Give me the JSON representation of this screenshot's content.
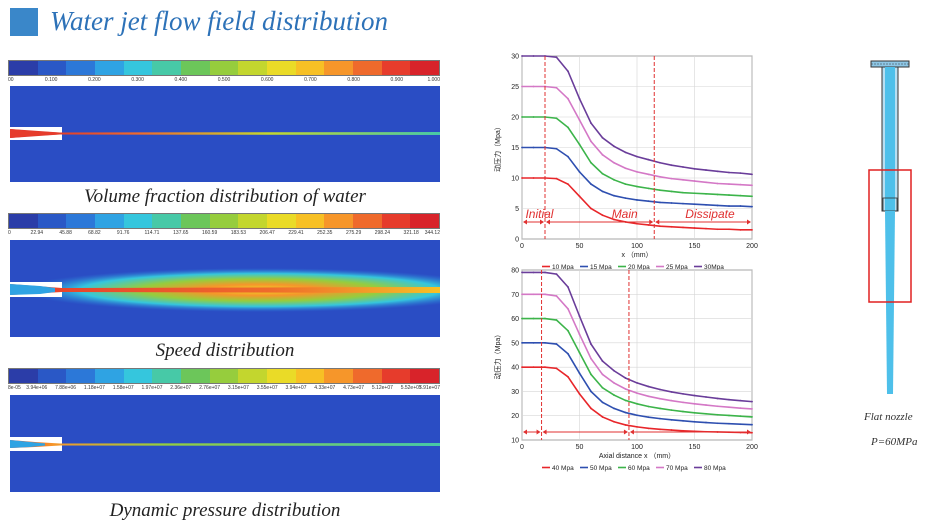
{
  "header": {
    "title": "Water jet flow field distribution",
    "accent_color": "#3a87c9"
  },
  "panels": [
    {
      "caption": "Volume fraction distribution of water",
      "ticks": [
        "00",
        "0.100",
        "0.200",
        "0.300",
        "0.400",
        "0.500",
        "0.600",
        "0.700",
        "0.800",
        "0.900",
        "1.000"
      ]
    },
    {
      "caption": "Speed distribution",
      "ticks": [
        "0",
        "22.94",
        "45.88",
        "68.82",
        "91.76",
        "114.71",
        "137.65",
        "160.59",
        "183.53",
        "206.47",
        "229.41",
        "252.35",
        "275.29",
        "298.24",
        "321.18",
        "344.12"
      ]
    },
    {
      "caption": "Dynamic pressure distribution",
      "ticks": [
        "8e-05",
        "3.94e+06",
        "7.88e+06",
        "1.18e+07",
        "1.58e+07",
        "1.97e+07",
        "2.36e+07",
        "2.76e+07",
        "3.15e+07",
        "3.55e+07",
        "3.94e+07",
        "4.33e+07",
        "4.73e+07",
        "5.12e+07",
        "5.52e+07",
        "5.91e+07"
      ]
    }
  ],
  "colormap": [
    "#2b3da8",
    "#2a58c6",
    "#2c78d8",
    "#2fa3e3",
    "#35c6dd",
    "#47c9a7",
    "#6cc65a",
    "#96cd3d",
    "#c3d62e",
    "#eadb27",
    "#f7c025",
    "#f6962a",
    "#ef6a2c",
    "#e63c2c",
    "#d8232a"
  ],
  "chart_data": [
    {
      "type": "line",
      "xlabel": "x （mm）",
      "ylabel": "动压力（Mpa）",
      "xlim": [
        0,
        200
      ],
      "ylim": [
        0,
        30
      ],
      "xticks": [
        0,
        50,
        100,
        150,
        200
      ],
      "yticks": [
        0,
        5,
        10,
        15,
        20,
        25,
        30
      ],
      "annotations": [
        "Initial",
        "Main",
        "Dissipate"
      ],
      "vlines": [
        20,
        115
      ],
      "series": [
        {
          "name": "10 Mpa",
          "color": "#e8262a",
          "x": [
            0,
            10,
            20,
            30,
            40,
            50,
            60,
            70,
            80,
            90,
            100,
            110,
            120,
            130,
            140,
            150,
            160,
            170,
            180,
            190,
            200
          ],
          "values": [
            10,
            10,
            10,
            9.9,
            9.0,
            7.0,
            5.0,
            3.9,
            3.2,
            2.8,
            2.5,
            2.3,
            2.1,
            2.0,
            1.9,
            1.8,
            1.7,
            1.6,
            1.6,
            1.5,
            1.5
          ]
        },
        {
          "name": "15 Mpa",
          "color": "#2e4fb0",
          "x": [
            0,
            10,
            20,
            30,
            40,
            50,
            60,
            70,
            80,
            90,
            100,
            110,
            120,
            130,
            140,
            150,
            160,
            170,
            180,
            190,
            200
          ],
          "values": [
            15,
            15,
            15,
            14.8,
            13.5,
            11.0,
            9.0,
            7.8,
            7.1,
            6.7,
            6.4,
            6.2,
            6.0,
            5.9,
            5.8,
            5.7,
            5.6,
            5.5,
            5.4,
            5.4,
            5.3
          ]
        },
        {
          "name": "20 Mpa",
          "color": "#3cb44a",
          "x": [
            0,
            10,
            20,
            30,
            40,
            50,
            60,
            70,
            80,
            90,
            100,
            110,
            120,
            130,
            140,
            150,
            160,
            170,
            180,
            190,
            200
          ],
          "values": [
            20,
            20,
            20,
            19.8,
            18.3,
            15.5,
            12.5,
            10.7,
            9.7,
            9.0,
            8.6,
            8.3,
            8.0,
            7.8,
            7.6,
            7.5,
            7.4,
            7.3,
            7.2,
            7.1,
            7.0
          ]
        },
        {
          "name": "25 Mpa",
          "color": "#d478c6",
          "x": [
            0,
            10,
            20,
            30,
            40,
            50,
            60,
            70,
            80,
            90,
            100,
            110,
            120,
            130,
            140,
            150,
            160,
            170,
            180,
            190,
            200
          ],
          "values": [
            25,
            25,
            25,
            24.8,
            23.0,
            19.5,
            16.0,
            13.8,
            12.5,
            11.6,
            11.0,
            10.6,
            10.2,
            9.9,
            9.7,
            9.5,
            9.3,
            9.1,
            9.0,
            8.9,
            8.8
          ]
        },
        {
          "name": "30Mpa",
          "color": "#6a3d9a",
          "x": [
            0,
            10,
            20,
            30,
            40,
            50,
            60,
            70,
            80,
            90,
            100,
            110,
            120,
            130,
            140,
            150,
            160,
            170,
            180,
            190,
            200
          ],
          "values": [
            30,
            30,
            30,
            29.8,
            27.5,
            23.0,
            19.0,
            16.6,
            15.2,
            14.2,
            13.5,
            13.0,
            12.5,
            12.1,
            11.8,
            11.5,
            11.3,
            11.1,
            10.9,
            10.8,
            10.6
          ]
        }
      ]
    },
    {
      "type": "line",
      "xlabel": "Axial distance x （mm）",
      "ylabel": "动压力（Mpa）",
      "xlim": [
        0,
        200
      ],
      "ylim": [
        10,
        80
      ],
      "xticks": [
        0,
        50,
        100,
        150,
        200
      ],
      "yticks": [
        10,
        20,
        30,
        40,
        50,
        60,
        70,
        80
      ],
      "vlines": [
        17,
        93
      ],
      "series": [
        {
          "name": "40 Mpa",
          "color": "#e8262a",
          "x": [
            0,
            10,
            20,
            30,
            40,
            50,
            60,
            70,
            80,
            90,
            100,
            110,
            120,
            130,
            140,
            150,
            160,
            170,
            180,
            190,
            200
          ],
          "values": [
            40,
            40,
            40,
            39.5,
            36,
            29,
            23,
            19.5,
            17.5,
            16.2,
            15.4,
            14.8,
            14.4,
            14.1,
            13.8,
            13.6,
            13.4,
            13.3,
            13.2,
            13.1,
            13.0
          ]
        },
        {
          "name": "50 Mpa",
          "color": "#2e4fb0",
          "x": [
            0,
            10,
            20,
            30,
            40,
            50,
            60,
            70,
            80,
            90,
            100,
            110,
            120,
            130,
            140,
            150,
            160,
            170,
            180,
            190,
            200
          ],
          "values": [
            50,
            50,
            50,
            49.5,
            45.5,
            37.5,
            30,
            25.5,
            23,
            21.3,
            20.2,
            19.4,
            18.8,
            18.3,
            17.9,
            17.5,
            17.2,
            16.9,
            16.7,
            16.5,
            16.3
          ]
        },
        {
          "name": "60 Mpa",
          "color": "#3cb44a",
          "x": [
            0,
            10,
            20,
            30,
            40,
            50,
            60,
            70,
            80,
            90,
            100,
            110,
            120,
            130,
            140,
            150,
            160,
            170,
            180,
            190,
            200
          ],
          "values": [
            60,
            60,
            60,
            59.4,
            55,
            46,
            37,
            31.5,
            28.5,
            26.3,
            24.9,
            23.8,
            23.0,
            22.3,
            21.7,
            21.2,
            20.8,
            20.4,
            20.1,
            19.8,
            19.5
          ]
        },
        {
          "name": "70 Mpa",
          "color": "#d478c6",
          "x": [
            0,
            10,
            20,
            30,
            40,
            50,
            60,
            70,
            80,
            90,
            100,
            110,
            120,
            130,
            140,
            150,
            160,
            170,
            180,
            190,
            200
          ],
          "values": [
            70,
            70,
            70,
            69.3,
            64,
            53.5,
            43.5,
            37,
            33.5,
            31,
            29.3,
            28,
            27,
            26.2,
            25.5,
            24.9,
            24.4,
            23.9,
            23.5,
            23.1,
            22.8
          ]
        },
        {
          "name": "80 Mpa",
          "color": "#6a3d9a",
          "x": [
            0,
            10,
            20,
            30,
            40,
            50,
            60,
            70,
            80,
            90,
            100,
            110,
            120,
            130,
            140,
            150,
            160,
            170,
            180,
            190,
            200
          ],
          "values": [
            79,
            79,
            79,
            78.3,
            73,
            61,
            49.5,
            42.5,
            38.5,
            35.5,
            33.5,
            32,
            30.8,
            29.8,
            29,
            28.3,
            27.7,
            27.1,
            26.6,
            26.2,
            25.8
          ]
        }
      ]
    }
  ],
  "nozzle": {
    "caption_line1": "Flat nozzle",
    "caption_line2": "P=60MPa",
    "jet_color": "#4ec0ea",
    "highlight_color": "#e02020"
  }
}
